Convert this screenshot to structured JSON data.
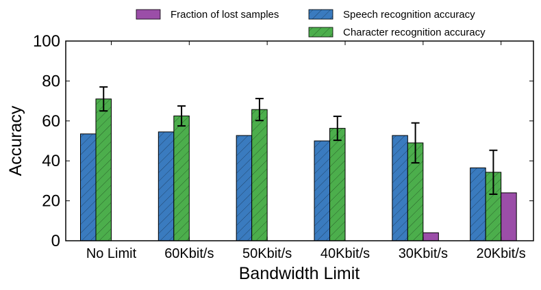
{
  "chart_data": {
    "type": "bar",
    "xlabel": "Bandwidth Limit",
    "ylabel": "Accuracy",
    "ylim": [
      0,
      100
    ],
    "yticks": [
      "0",
      "20",
      "40",
      "60",
      "80",
      "100"
    ],
    "categories": [
      "No Limit",
      "60Kbit/s",
      "50Kbit/s",
      "40Kbit/s",
      "30Kbit/s",
      "20Kbit/s"
    ],
    "legend_position": "top (above plot)",
    "series": [
      {
        "name": "Speech recognition accuracy",
        "color": "#3a7bbf",
        "hatch": "diagonal",
        "values": [
          53.5,
          54.5,
          52.7,
          50.0,
          52.7,
          36.5
        ]
      },
      {
        "name": "Character recognition accuracy",
        "color": "#4cae4c",
        "hatch": "diagonal",
        "values": [
          71.0,
          62.5,
          65.7,
          56.3,
          49.0,
          34.3
        ],
        "error": [
          6.0,
          5.0,
          5.5,
          6.0,
          10.0,
          11.0
        ]
      },
      {
        "name": "Fraction of lost samples",
        "color": "#9b4ea8",
        "values": [
          0,
          0,
          0,
          0,
          4.0,
          24.0
        ]
      }
    ]
  }
}
